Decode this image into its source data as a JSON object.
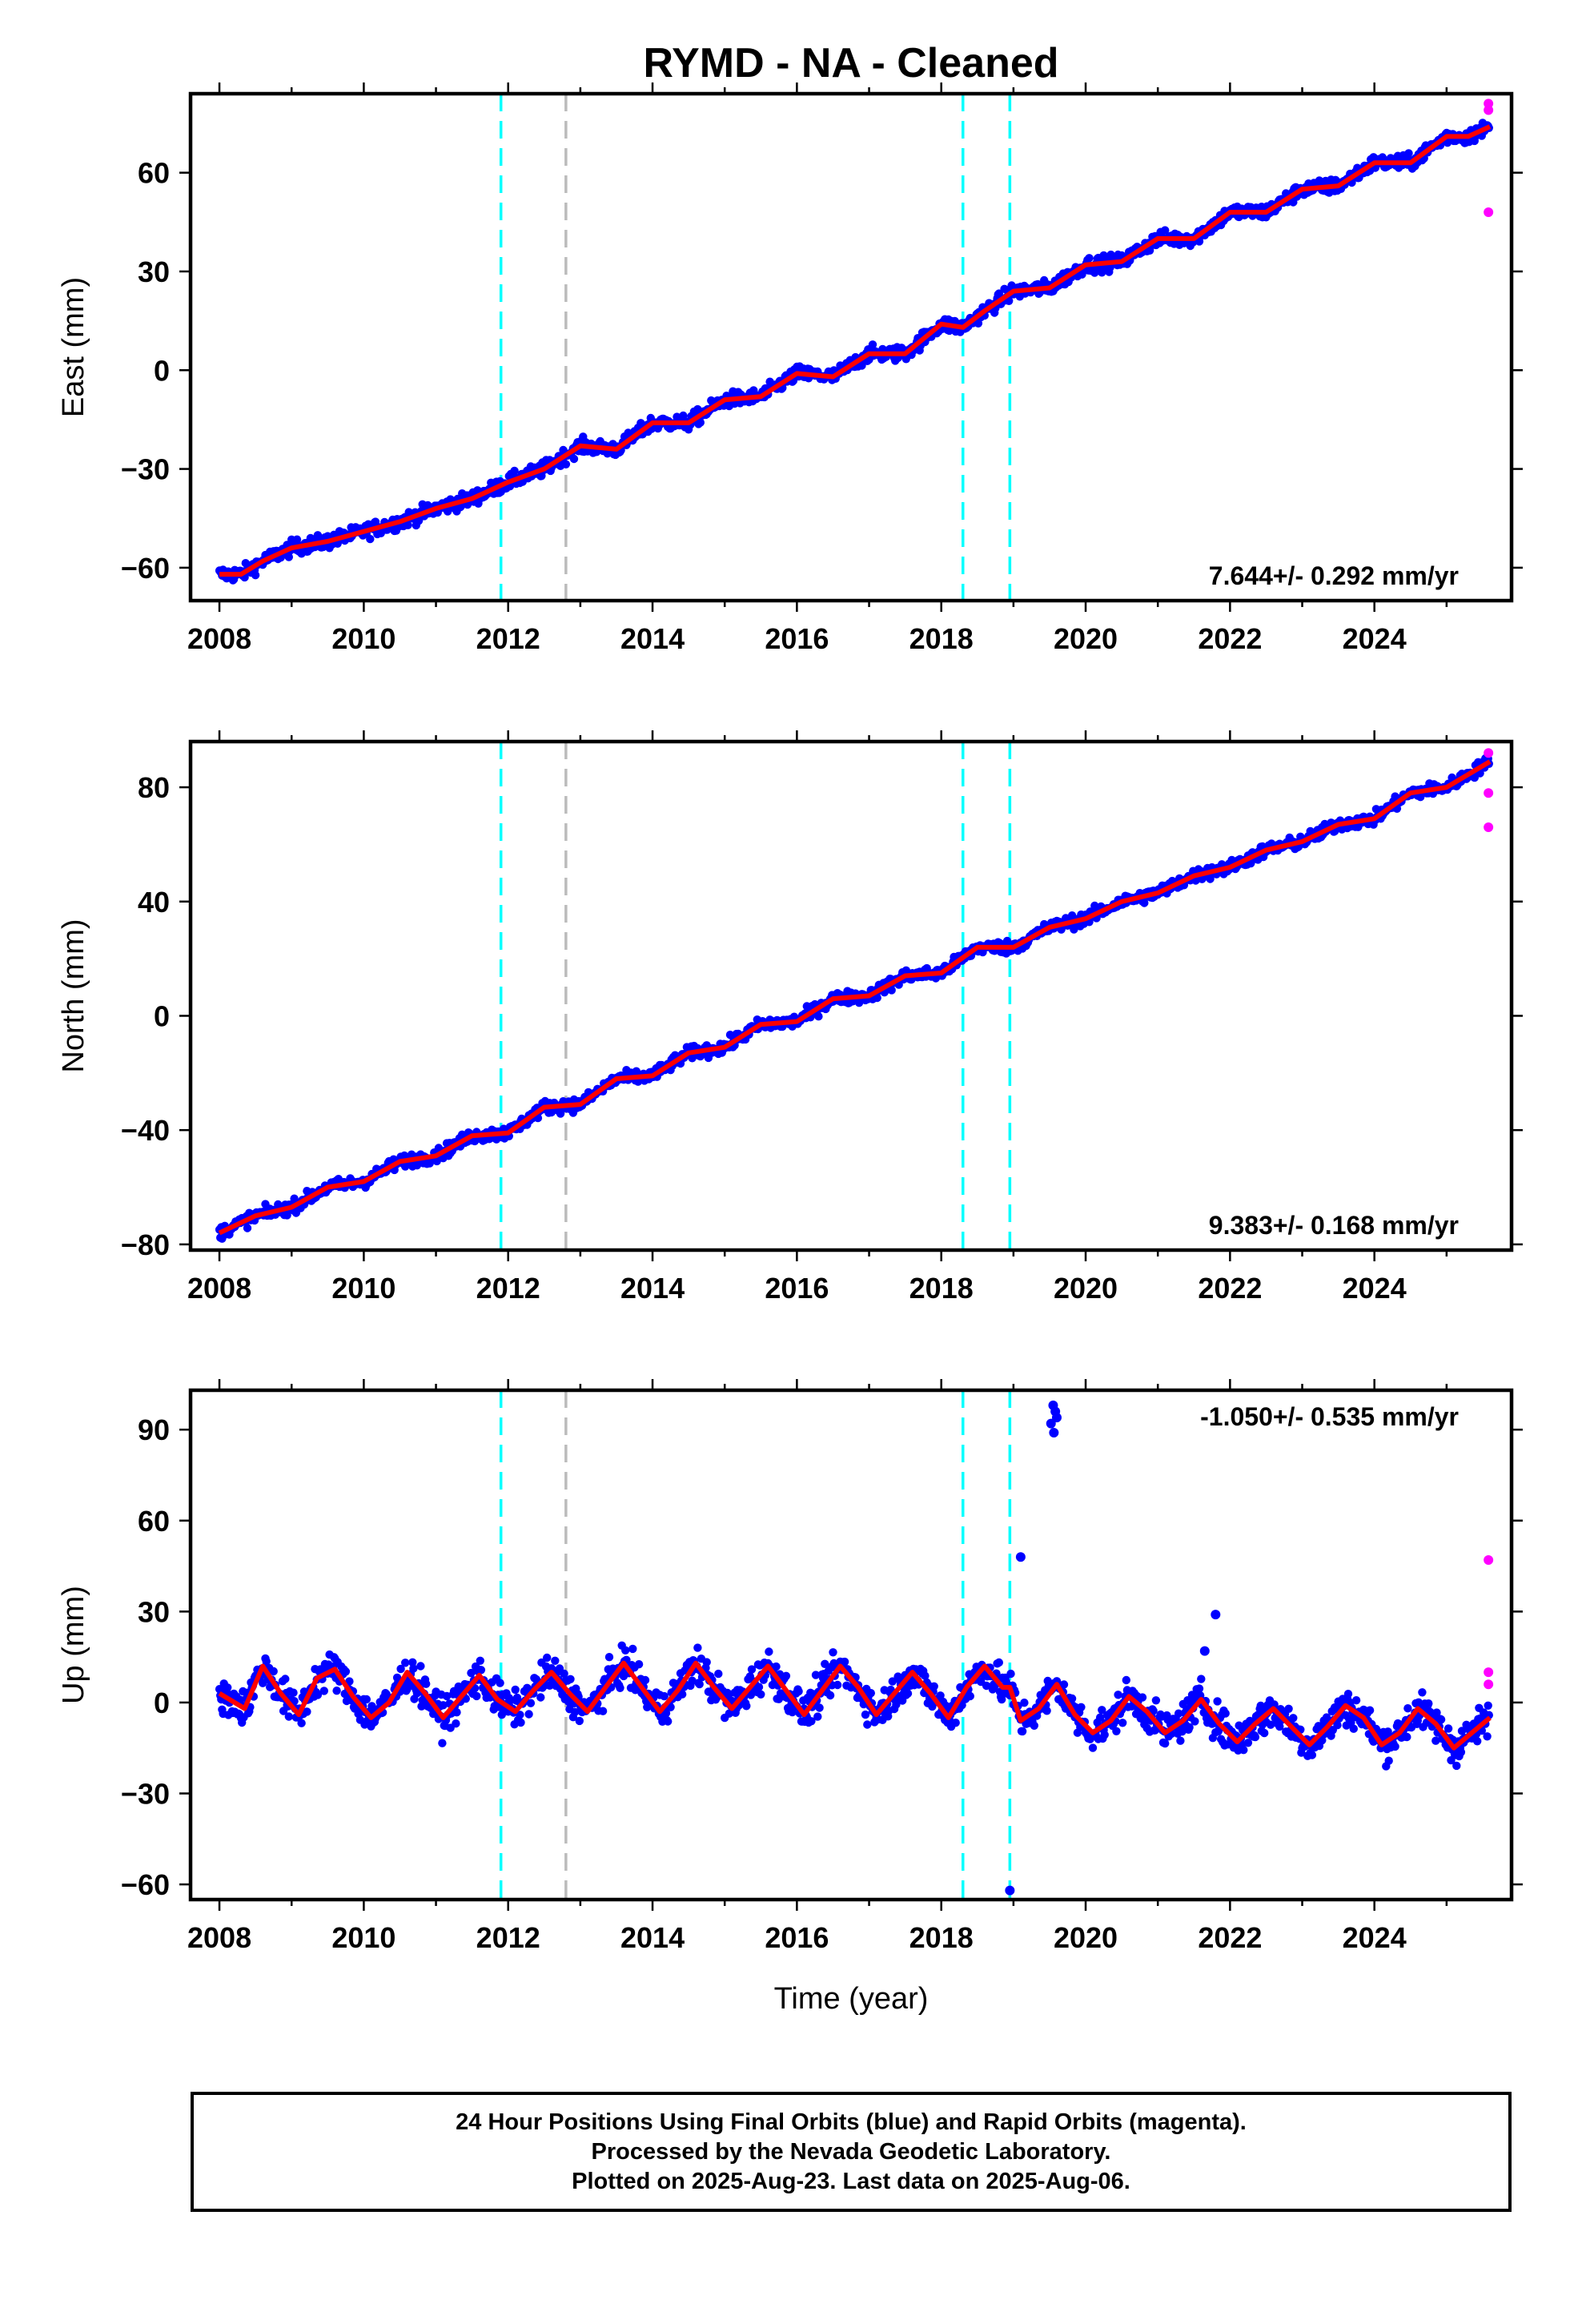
{
  "title": "RYMD  - NA - Cleaned",
  "xlabel": "Time (year)",
  "footer": {
    "line1": "24 Hour Positions Using Final Orbits (blue) and Rapid Orbits (magenta).",
    "line2": "Processed by the Nevada Geodetic Laboratory.",
    "line3": "Plotted on 2025-Aug-23. Last data on 2025-Aug-06."
  },
  "colors": {
    "final_orbits": "#0000ff",
    "rapid_orbits": "#ff00ff",
    "model": "#ff0000",
    "equipment_change": "#00ffff",
    "earthquake": "#bbbbbb"
  },
  "chart_data": [
    {
      "type": "scatter",
      "component": "East",
      "ylabel": "East (mm)",
      "xlim": [
        2007.6,
        2025.9
      ],
      "ylim": [
        -70,
        84
      ],
      "xticks": [
        2008,
        2010,
        2012,
        2014,
        2016,
        2018,
        2020,
        2022,
        2024
      ],
      "yticks": [
        -60,
        -30,
        0,
        30,
        60
      ],
      "rate_label": "7.644+/- 0.292 mm/yr",
      "rate_position": "bottom-right",
      "offset_lines": [
        {
          "x": 2011.9,
          "kind": "equipment_change"
        },
        {
          "x": 2012.8,
          "kind": "earthquake"
        },
        {
          "x": 2018.3,
          "kind": "equipment_change"
        },
        {
          "x": 2018.95,
          "kind": "equipment_change"
        }
      ],
      "model_curve": {
        "x": [
          2008.0,
          2008.3,
          2008.6,
          2009.0,
          2009.5,
          2010.0,
          2010.5,
          2011.0,
          2011.5,
          2012.0,
          2012.5,
          2013.0,
          2013.5,
          2014.0,
          2014.5,
          2015.0,
          2015.5,
          2016.0,
          2016.5,
          2017.0,
          2017.5,
          2018.0,
          2018.3,
          2018.6,
          2019.0,
          2019.5,
          2020.0,
          2020.5,
          2021.0,
          2021.5,
          2022.0,
          2022.5,
          2023.0,
          2023.5,
          2024.0,
          2024.5,
          2025.0,
          2025.3,
          2025.6
        ],
        "y": [
          -62,
          -62,
          -58,
          -54,
          -52,
          -49,
          -46,
          -42,
          -39,
          -34,
          -30,
          -23,
          -24,
          -16,
          -16,
          -9,
          -8,
          -1,
          -2,
          5,
          5,
          14,
          13,
          18,
          24,
          25,
          32,
          33,
          40,
          40,
          48,
          48,
          55,
          56,
          63,
          63,
          71,
          71,
          74
        ]
      },
      "rapid_points": [
        {
          "x": 2025.58,
          "y": 81
        },
        {
          "x": 2025.58,
          "y": 79
        },
        {
          "x": 2025.58,
          "y": 48
        }
      ],
      "outliers": []
    },
    {
      "type": "scatter",
      "component": "North",
      "ylabel": "North (mm)",
      "xlim": [
        2007.6,
        2025.9
      ],
      "ylim": [
        -82,
        96
      ],
      "xticks": [
        2008,
        2010,
        2012,
        2014,
        2016,
        2018,
        2020,
        2022,
        2024
      ],
      "yticks": [
        -80,
        -40,
        0,
        40,
        80
      ],
      "rate_label": "9.383+/- 0.168 mm/yr",
      "rate_position": "bottom-right",
      "offset_lines": [
        {
          "x": 2011.9,
          "kind": "equipment_change"
        },
        {
          "x": 2012.8,
          "kind": "earthquake"
        },
        {
          "x": 2018.3,
          "kind": "equipment_change"
        },
        {
          "x": 2018.95,
          "kind": "equipment_change"
        }
      ],
      "model_curve": {
        "x": [
          2008.0,
          2008.5,
          2009.0,
          2009.5,
          2010.0,
          2010.5,
          2011.0,
          2011.5,
          2012.0,
          2012.5,
          2013.0,
          2013.5,
          2014.0,
          2014.5,
          2015.0,
          2015.5,
          2016.0,
          2016.5,
          2017.0,
          2017.5,
          2018.0,
          2018.5,
          2019.0,
          2019.5,
          2020.0,
          2020.5,
          2021.0,
          2021.5,
          2022.0,
          2022.5,
          2023.0,
          2023.5,
          2024.0,
          2024.5,
          2025.0,
          2025.6
        ],
        "y": [
          -76,
          -70,
          -67,
          -60,
          -58,
          -51,
          -49,
          -42,
          -41,
          -32,
          -31,
          -22,
          -21,
          -13,
          -11,
          -3,
          -2,
          6,
          7,
          14,
          15,
          24,
          24,
          31,
          34,
          40,
          43,
          49,
          52,
          58,
          61,
          67,
          69,
          78,
          80,
          89
        ]
      },
      "rapid_points": [
        {
          "x": 2025.58,
          "y": 92
        },
        {
          "x": 2025.58,
          "y": 78
        },
        {
          "x": 2025.58,
          "y": 66
        }
      ],
      "outliers": []
    },
    {
      "type": "scatter",
      "component": "Up",
      "ylabel": "Up (mm)",
      "xlim": [
        2007.6,
        2025.9
      ],
      "ylim": [
        -65,
        103
      ],
      "xticks": [
        2008,
        2010,
        2012,
        2014,
        2016,
        2018,
        2020,
        2022,
        2024
      ],
      "yticks": [
        -60,
        -30,
        0,
        30,
        60,
        90
      ],
      "rate_label": "-1.050+/- 0.535 mm/yr",
      "rate_position": "top-right",
      "offset_lines": [
        {
          "x": 2011.9,
          "kind": "equipment_change"
        },
        {
          "x": 2012.8,
          "kind": "earthquake"
        },
        {
          "x": 2018.3,
          "kind": "equipment_change"
        },
        {
          "x": 2018.95,
          "kind": "equipment_change"
        }
      ],
      "model_curve": {
        "x": [
          2008.0,
          2008.35,
          2008.6,
          2008.85,
          2009.1,
          2009.35,
          2009.6,
          2009.85,
          2010.1,
          2010.35,
          2010.6,
          2010.85,
          2011.1,
          2011.35,
          2011.6,
          2011.85,
          2012.1,
          2012.35,
          2012.6,
          2012.85,
          2013.1,
          2013.35,
          2013.6,
          2013.85,
          2014.1,
          2014.35,
          2014.6,
          2014.85,
          2015.1,
          2015.35,
          2015.6,
          2015.85,
          2016.1,
          2016.35,
          2016.6,
          2016.85,
          2017.1,
          2017.35,
          2017.6,
          2017.85,
          2018.1,
          2018.35,
          2018.6,
          2018.85,
          2018.95,
          2019.1,
          2019.35,
          2019.6,
          2019.85,
          2020.1,
          2020.35,
          2020.6,
          2020.85,
          2021.1,
          2021.35,
          2021.6,
          2021.85,
          2022.1,
          2022.35,
          2022.6,
          2022.85,
          2023.1,
          2023.35,
          2023.6,
          2023.85,
          2024.1,
          2024.35,
          2024.6,
          2024.85,
          2025.1,
          2025.35,
          2025.6
        ],
        "y": [
          3,
          -2,
          12,
          3,
          -4,
          8,
          11,
          2,
          -5,
          0,
          10,
          3,
          -5,
          2,
          9,
          1,
          -3,
          4,
          10,
          3,
          -3,
          5,
          13,
          5,
          -3,
          4,
          13,
          5,
          -2,
          5,
          12,
          4,
          -4,
          4,
          12,
          5,
          -4,
          3,
          10,
          3,
          -5,
          5,
          12,
          5,
          5,
          -6,
          -2,
          6,
          -4,
          -10,
          -6,
          2,
          -3,
          -10,
          -6,
          1,
          -7,
          -13,
          -7,
          -2,
          -8,
          -14,
          -8,
          -1,
          -5,
          -14,
          -10,
          -2,
          -7,
          -15,
          -10,
          -5
        ]
      },
      "rapid_points": [
        {
          "x": 2025.58,
          "y": 47
        },
        {
          "x": 2025.58,
          "y": 10
        },
        {
          "x": 2025.58,
          "y": 6
        }
      ],
      "outliers": [
        {
          "x": 2019.55,
          "y": 98
        },
        {
          "x": 2019.58,
          "y": 96
        },
        {
          "x": 2019.6,
          "y": 94
        },
        {
          "x": 2019.52,
          "y": 92
        },
        {
          "x": 2019.56,
          "y": 89
        },
        {
          "x": 2019.1,
          "y": 48
        },
        {
          "x": 2021.8,
          "y": 29
        },
        {
          "x": 2021.65,
          "y": 17
        },
        {
          "x": 2018.95,
          "y": -62
        }
      ]
    }
  ]
}
